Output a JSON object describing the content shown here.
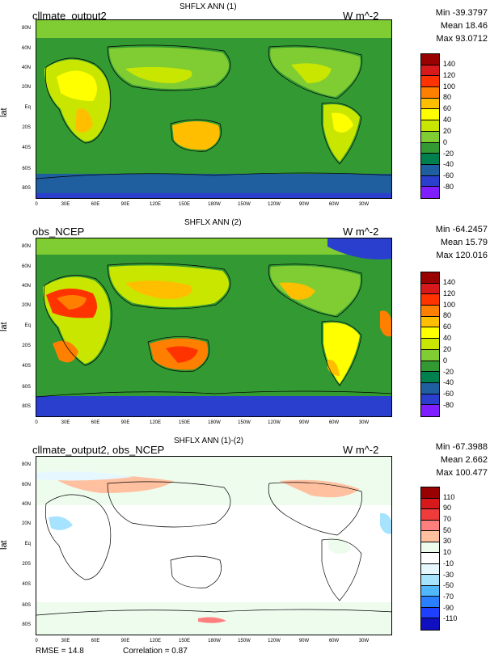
{
  "panels": [
    {
      "title": "SHFLX ANN (1)",
      "left_title": "cllmate_output2",
      "units": "W m^-2",
      "stats": [
        "Min -39.3797",
        "Mean 18.46",
        "Max 93.0712"
      ],
      "y_label": "lat",
      "lat_ticks": [
        "80N",
        "60N",
        "40N",
        "20N",
        "Eq",
        "20S",
        "40S",
        "60S",
        "80S"
      ],
      "lon_ticks": [
        "0",
        "30E",
        "60E",
        "90E",
        "120E",
        "150E",
        "180W",
        "150W",
        "120W",
        "90W",
        "60W",
        "30W"
      ],
      "colorbar": {
        "levels": [
          "140",
          "120",
          "100",
          "80",
          "60",
          "40",
          "20",
          "0",
          "-20",
          "-40",
          "-60",
          "-80"
        ],
        "colors": [
          "#990000",
          "#d7191c",
          "#ff3300",
          "#ff7f00",
          "#ffbf00",
          "#ffff00",
          "#c8e600",
          "#80cc33",
          "#339933",
          "#007f4f",
          "#1f5fa0",
          "#2b3fcf",
          "#7f1fff"
        ]
      }
    },
    {
      "title": "SHFLX ANN (2)",
      "left_title": "obs_NCEP",
      "units": "W m^-2",
      "stats": [
        "Min -64.2457",
        "Mean 15.79",
        "Max 120.016"
      ],
      "y_label": "lat",
      "lat_ticks": [
        "80N",
        "60N",
        "40N",
        "20N",
        "Eq",
        "20S",
        "40S",
        "60S",
        "80S"
      ],
      "lon_ticks": [
        "0",
        "30E",
        "60E",
        "90E",
        "120E",
        "150E",
        "180W",
        "150W",
        "120W",
        "90W",
        "60W",
        "30W"
      ],
      "colorbar": {
        "levels": [
          "140",
          "120",
          "100",
          "80",
          "60",
          "40",
          "20",
          "0",
          "-20",
          "-40",
          "-60",
          "-80"
        ],
        "colors": [
          "#990000",
          "#d7191c",
          "#ff3300",
          "#ff7f00",
          "#ffbf00",
          "#ffff00",
          "#c8e600",
          "#80cc33",
          "#339933",
          "#007f4f",
          "#1f5fa0",
          "#2b3fcf",
          "#7f1fff"
        ]
      }
    },
    {
      "title": "SHFLX ANN (1)-(2)",
      "left_title": "cllmate_output2, obs_NCEP",
      "units": "W m^-2",
      "stats": [
        "Min -67.3988",
        "Mean 2.662",
        "Max 100.477"
      ],
      "y_label": "lat",
      "lat_ticks": [
        "80N",
        "60N",
        "40N",
        "20N",
        "Eq",
        "20S",
        "40S",
        "60S",
        "80S"
      ],
      "lon_ticks": [
        "0",
        "30E",
        "60E",
        "90E",
        "120E",
        "150E",
        "180W",
        "150W",
        "120W",
        "90W",
        "60W",
        "30W"
      ],
      "colorbar": {
        "levels": [
          "110",
          "90",
          "70",
          "50",
          "30",
          "10",
          "-10",
          "-30",
          "-50",
          "-70",
          "-90",
          "-110"
        ],
        "colors": [
          "#990000",
          "#d7191c",
          "#f03b3b",
          "#ff7f7f",
          "#ffc0a0",
          "#eefcee",
          "#ffffff",
          "#e6f7ff",
          "#a6e3ff",
          "#4fb8ff",
          "#2a7fff",
          "#1f3fff",
          "#1010c0"
        ]
      }
    }
  ],
  "footer": {
    "rmse": "RMSE = 14.8",
    "correlation": "Correlation = 0.87"
  },
  "chart_data": [
    {
      "type": "heatmap",
      "title": "SHFLX ANN (1)",
      "left_title": "cllmate_output2",
      "units": "W m^-2",
      "ylabel": "lat",
      "min": -39.3797,
      "mean": 18.46,
      "max": 93.0712,
      "x_ticks": [
        "0",
        "30E",
        "60E",
        "90E",
        "120E",
        "150E",
        "180W",
        "150W",
        "120W",
        "90W",
        "60W",
        "30W"
      ],
      "y_ticks": [
        "80N",
        "60N",
        "40N",
        "20N",
        "Eq",
        "20S",
        "40S",
        "60S",
        "80S"
      ],
      "levels": [
        -80,
        -60,
        -40,
        -20,
        0,
        20,
        40,
        60,
        80,
        100,
        120,
        140
      ]
    },
    {
      "type": "heatmap",
      "title": "SHFLX ANN (2)",
      "left_title": "obs_NCEP",
      "units": "W m^-2",
      "ylabel": "lat",
      "min": -64.2457,
      "mean": 15.79,
      "max": 120.016,
      "x_ticks": [
        "0",
        "30E",
        "60E",
        "90E",
        "120E",
        "150E",
        "180W",
        "150W",
        "120W",
        "90W",
        "60W",
        "30W"
      ],
      "y_ticks": [
        "80N",
        "60N",
        "40N",
        "20N",
        "Eq",
        "20S",
        "40S",
        "60S",
        "80S"
      ],
      "levels": [
        -80,
        -60,
        -40,
        -20,
        0,
        20,
        40,
        60,
        80,
        100,
        120,
        140
      ]
    },
    {
      "type": "heatmap",
      "title": "SHFLX ANN (1)-(2)",
      "left_title": "cllmate_output2, obs_NCEP",
      "units": "W m^-2",
      "ylabel": "lat",
      "min": -67.3988,
      "mean": 2.662,
      "max": 100.477,
      "rmse": 14.8,
      "correlation": 0.87,
      "x_ticks": [
        "0",
        "30E",
        "60E",
        "90E",
        "120E",
        "150E",
        "180W",
        "150W",
        "120W",
        "90W",
        "60W",
        "30W"
      ],
      "y_ticks": [
        "80N",
        "60N",
        "40N",
        "20N",
        "Eq",
        "20S",
        "40S",
        "60S",
        "80S"
      ],
      "levels": [
        -110,
        -90,
        -70,
        -50,
        -30,
        -10,
        10,
        30,
        50,
        70,
        90,
        110
      ]
    }
  ]
}
